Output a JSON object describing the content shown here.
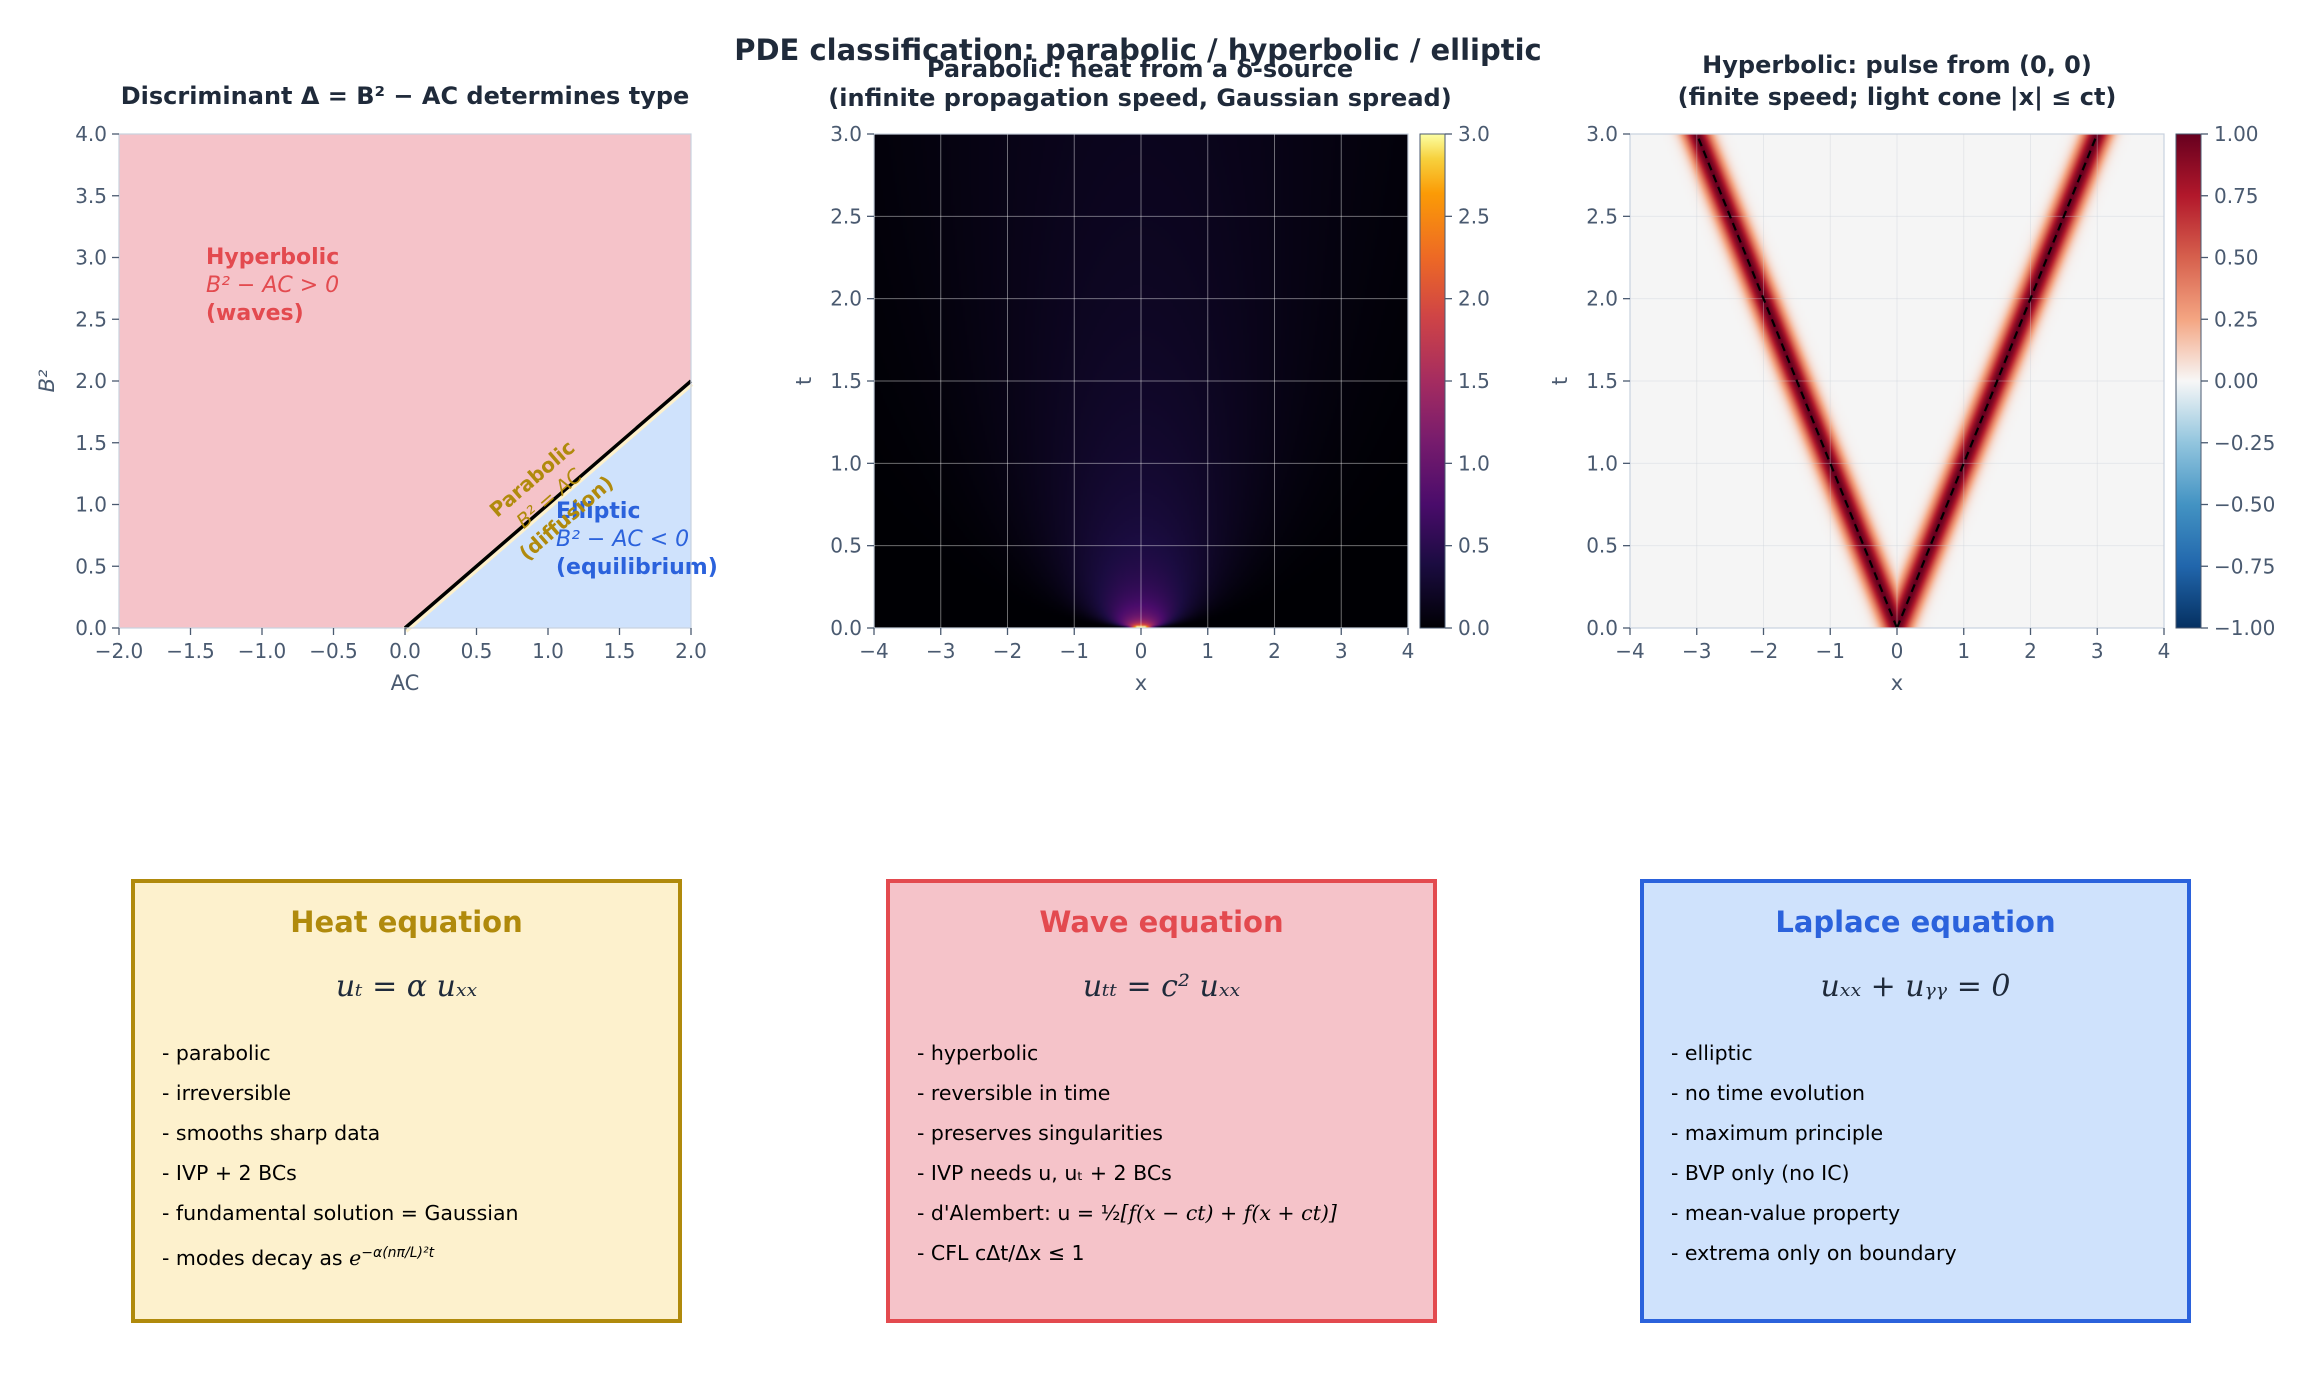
{
  "suptitle": "PDE classification:  parabolic   /   hyperbolic   /   elliptic",
  "colors": {
    "text": "#1f2a3a",
    "axis": "#4a5a70",
    "parabolic": "#b08a0c",
    "hyperbolic": "#e34a4f",
    "elliptic": "#2b62dc",
    "hyperbolic_fill": "#f5c3c9",
    "elliptic_fill": "#cfe2fc",
    "parabolic_fill": "#fdf1cd"
  },
  "chart_data": [
    {
      "type": "area",
      "title": "Discriminant Δ = B² − AC  determines type",
      "xlabel": "AC",
      "ylabel": "B²",
      "xlim": [
        -2,
        2
      ],
      "ylim": [
        0,
        4
      ],
      "xticks": [
        "−2.0",
        "−1.5",
        "−1.0",
        "−0.5",
        "0.0",
        "0.5",
        "1.0",
        "1.5",
        "2.0"
      ],
      "yticks": [
        "0.0",
        "0.5",
        "1.0",
        "1.5",
        "2.0",
        "2.5",
        "3.0",
        "3.5",
        "4.0"
      ],
      "boundary_line": {
        "x": [
          0,
          2
        ],
        "y": [
          0,
          2
        ]
      },
      "regions": [
        {
          "name": "Hyperbolic",
          "condition": "B² − AC > 0",
          "note": "(waves)"
        },
        {
          "name": "Elliptic",
          "condition": "B² − AC < 0",
          "note": "(equilibrium)"
        },
        {
          "name": "Parabolic",
          "condition": "B² = AC",
          "note": "(diffusion)"
        }
      ],
      "grid": false
    },
    {
      "type": "heatmap",
      "title_line1": "Parabolic:  heat from a δ-source",
      "title_line2": "(infinite propagation speed, Gaussian spread)",
      "xlabel": "x",
      "ylabel": "t",
      "xlim": [
        -4,
        4
      ],
      "ylim": [
        0,
        3
      ],
      "xticks": [
        "−4",
        "−3",
        "−2",
        "−1",
        "0",
        "1",
        "2",
        "3",
        "4"
      ],
      "yticks": [
        "0.0",
        "0.5",
        "1.0",
        "1.5",
        "2.0",
        "2.5",
        "3.0"
      ],
      "function": "u(x,t) = exp(-x²/(4t)) / sqrt(4πt)",
      "colormap": "inferno",
      "colorbar": {
        "min": 0.0,
        "max": 3.0,
        "ticks": [
          "0.0",
          "0.5",
          "1.0",
          "1.5",
          "2.0",
          "2.5",
          "3.0"
        ]
      },
      "grid": true
    },
    {
      "type": "heatmap",
      "title_line1": "Hyperbolic:  pulse from (0, 0)",
      "title_line2": "(finite speed; light cone |x| ≤ ct)",
      "xlabel": "x",
      "ylabel": "t",
      "xlim": [
        -4,
        4
      ],
      "ylim": [
        0,
        3
      ],
      "xticks": [
        "−4",
        "−3",
        "−2",
        "−1",
        "0",
        "1",
        "2",
        "3",
        "4"
      ],
      "yticks": [
        "0.0",
        "0.5",
        "1.0",
        "1.5",
        "2.0",
        "2.5",
        "3.0"
      ],
      "function": "u(x,t) = exp(-(|x| - t)²/0.04)",
      "light_cone": {
        "slope": 1,
        "lines": [
          [
            0,
            0,
            -3,
            3
          ],
          [
            0,
            0,
            3,
            3
          ]
        ]
      },
      "colormap": "RdBu_r",
      "colorbar": {
        "min": -1.0,
        "max": 1.0,
        "ticks": [
          "−1.00",
          "−0.75",
          "−0.50",
          "−0.25",
          "0.00",
          "0.25",
          "0.50",
          "0.75",
          "1.00"
        ]
      },
      "grid": true
    }
  ],
  "cards": [
    {
      "title": "Heat equation",
      "equation": "uₜ = α uₓₓ",
      "items": [
        "- parabolic",
        "- irreversible",
        "- smooths sharp data",
        "- IVP + 2 BCs",
        "- fundamental solution = Gaussian",
        "- modes decay as "
      ],
      "decay_exponent": "−α(nπ/L)²t",
      "decay_base": "e"
    },
    {
      "title": "Wave equation",
      "equation": "uₜₜ = c² uₓₓ",
      "items": [
        "- hyperbolic",
        "- reversible in time",
        "- preserves singularities",
        "- IVP needs u, uₜ + 2 BCs",
        "- d'Alembert: u = ",
        "- CFL  cΔt/Δx ≤ 1"
      ],
      "dalembert_frac": "½",
      "dalembert_rest": "[f(x − ct) + f(x + ct)]"
    },
    {
      "title": "Laplace equation",
      "equation": "uₓₓ + uᵧᵧ = 0",
      "items": [
        "- elliptic",
        "- no time evolution",
        "- maximum principle",
        "- BVP only (no IC)",
        "- mean-value property",
        "- extrema only on boundary"
      ]
    }
  ]
}
